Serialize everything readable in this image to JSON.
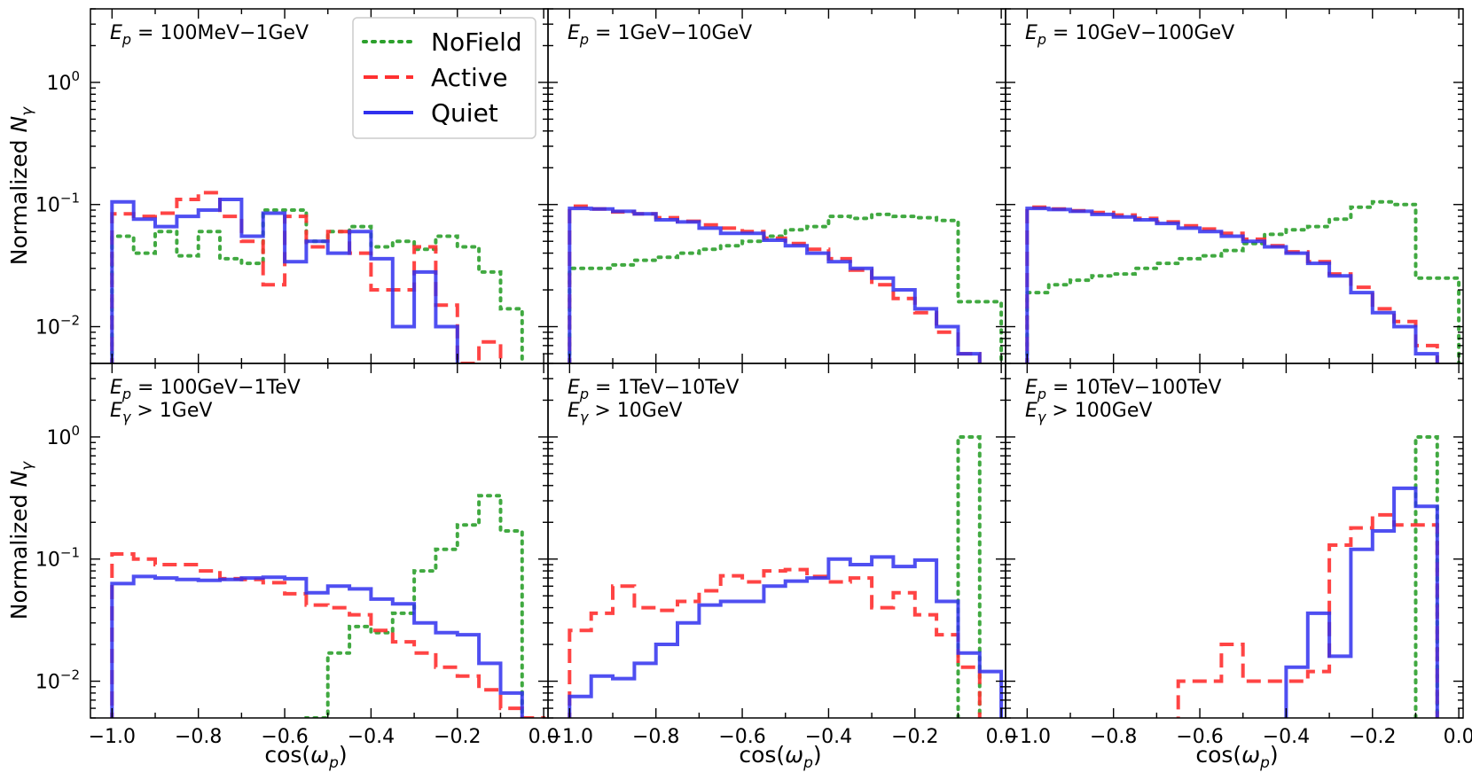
{
  "figure": {
    "ylabel": "Normalized N_γ",
    "xlabel": "cos(ω_p)",
    "yscale": "log",
    "ylim": [
      0.005,
      4.0
    ],
    "xlim": [
      -1.05,
      0.01
    ],
    "colors": {
      "NoField": "#2ca02c",
      "Active": "#ff3030",
      "Quiet": "#3030ee"
    }
  },
  "legend": [
    {
      "name": "NoField",
      "style": "dotted"
    },
    {
      "name": "Active",
      "style": "dashed"
    },
    {
      "name": "Quiet",
      "style": "solid"
    }
  ],
  "chart_data": [
    {
      "type": "line",
      "title": "E_p = 100MeV−1GeV",
      "subtitle": "",
      "xlabel": "",
      "ylabel": "Normalized N_γ",
      "xticks": [
        "−1.0",
        "−0.8",
        "−0.6",
        "−0.4",
        "−0.2",
        "0.0"
      ],
      "yticks": [
        "10^-2",
        "10^-1",
        "10^0"
      ],
      "x": [
        -1.0,
        -0.95,
        -0.9,
        -0.85,
        -0.8,
        -0.75,
        -0.7,
        -0.65,
        -0.6,
        -0.55,
        -0.5,
        -0.45,
        -0.4,
        -0.35,
        -0.3,
        -0.25,
        -0.2,
        -0.15,
        -0.1,
        -0.05
      ],
      "series": [
        {
          "name": "NoField",
          "values": [
            0.055,
            0.04,
            0.06,
            0.038,
            0.06,
            0.036,
            0.033,
            0.09,
            0.09,
            0.05,
            0.06,
            0.066,
            0.045,
            0.05,
            0.043,
            0.055,
            0.045,
            0.028,
            0.014,
            0.0045
          ]
        },
        {
          "name": "Active",
          "values": [
            0.084,
            0.08,
            0.085,
            0.11,
            0.125,
            0.08,
            0.05,
            0.022,
            0.08,
            0.045,
            0.06,
            0.04,
            0.02,
            0.02,
            0.045,
            0.015,
            0.005,
            0.0075,
            0.004,
            0.0035
          ]
        },
        {
          "name": "Quiet",
          "values": [
            0.105,
            0.076,
            0.066,
            0.08,
            0.09,
            0.11,
            0.055,
            0.085,
            0.034,
            0.05,
            0.04,
            0.06,
            0.036,
            0.01,
            0.028,
            0.01,
            0.004,
            0.004,
            0.004,
            0.004
          ]
        }
      ]
    },
    {
      "type": "line",
      "title": "E_p = 1GeV−10GeV",
      "subtitle": "",
      "xlabel": "",
      "ylabel": "",
      "xticks": [
        "−1.0",
        "−0.8",
        "−0.6",
        "−0.4",
        "−0.2",
        "0.0"
      ],
      "yticks": [],
      "x": [
        -1.0,
        -0.95,
        -0.9,
        -0.85,
        -0.8,
        -0.75,
        -0.7,
        -0.65,
        -0.6,
        -0.55,
        -0.5,
        -0.45,
        -0.4,
        -0.35,
        -0.3,
        -0.25,
        -0.2,
        -0.15,
        -0.1,
        -0.05
      ],
      "series": [
        {
          "name": "NoField",
          "values": [
            0.03,
            0.03,
            0.032,
            0.035,
            0.037,
            0.04,
            0.043,
            0.046,
            0.05,
            0.055,
            0.062,
            0.066,
            0.08,
            0.077,
            0.083,
            0.08,
            0.078,
            0.074,
            0.016,
            0.016
          ]
        },
        {
          "name": "Active",
          "values": [
            0.097,
            0.092,
            0.087,
            0.084,
            0.078,
            0.073,
            0.068,
            0.064,
            0.06,
            0.053,
            0.048,
            0.043,
            0.036,
            0.029,
            0.022,
            0.017,
            0.013,
            0.009,
            0.006,
            0.004
          ]
        },
        {
          "name": "Quiet",
          "values": [
            0.093,
            0.092,
            0.088,
            0.084,
            0.075,
            0.072,
            0.064,
            0.058,
            0.058,
            0.051,
            0.046,
            0.04,
            0.034,
            0.03,
            0.025,
            0.02,
            0.014,
            0.01,
            0.006,
            0.004
          ]
        }
      ]
    },
    {
      "type": "line",
      "title": "E_p = 10GeV−100GeV",
      "subtitle": "",
      "xlabel": "",
      "ylabel": "",
      "xticks": [
        "−1.0",
        "−0.8",
        "−0.6",
        "−0.4",
        "−0.2",
        "0.0"
      ],
      "yticks": [],
      "x": [
        -1.0,
        -0.95,
        -0.9,
        -0.85,
        -0.8,
        -0.75,
        -0.7,
        -0.65,
        -0.6,
        -0.55,
        -0.5,
        -0.45,
        -0.4,
        -0.35,
        -0.3,
        -0.25,
        -0.2,
        -0.15,
        -0.1,
        -0.05
      ],
      "series": [
        {
          "name": "NoField",
          "values": [
            0.019,
            0.022,
            0.024,
            0.026,
            0.027,
            0.03,
            0.033,
            0.036,
            0.038,
            0.042,
            0.048,
            0.057,
            0.062,
            0.066,
            0.076,
            0.095,
            0.105,
            0.1,
            0.025,
            0.025
          ]
        },
        {
          "name": "Active",
          "values": [
            0.095,
            0.092,
            0.089,
            0.086,
            0.082,
            0.077,
            0.072,
            0.067,
            0.063,
            0.058,
            0.052,
            0.046,
            0.041,
            0.034,
            0.027,
            0.021,
            0.014,
            0.011,
            0.007,
            0.004
          ]
        },
        {
          "name": "Quiet",
          "values": [
            0.093,
            0.091,
            0.088,
            0.083,
            0.079,
            0.075,
            0.07,
            0.064,
            0.06,
            0.055,
            0.05,
            0.045,
            0.04,
            0.033,
            0.026,
            0.019,
            0.013,
            0.01,
            0.006,
            0.004
          ]
        }
      ]
    },
    {
      "type": "line",
      "title": "E_p = 100GeV−1TeV",
      "subtitle": "E_γ > 1GeV",
      "xlabel": "cos(ω_p)",
      "ylabel": "Normalized N_γ",
      "xticks": [
        "−1.0",
        "−0.8",
        "−0.6",
        "−0.4",
        "−0.2",
        "0.0"
      ],
      "yticks": [
        "10^-2",
        "10^-1",
        "10^0"
      ],
      "x": [
        -1.0,
        -0.95,
        -0.9,
        -0.85,
        -0.8,
        -0.75,
        -0.7,
        -0.65,
        -0.6,
        -0.55,
        -0.5,
        -0.45,
        -0.4,
        -0.35,
        -0.3,
        -0.25,
        -0.2,
        -0.15,
        -0.1,
        -0.05
      ],
      "series": [
        {
          "name": "NoField",
          "values": [
            0.001,
            0.001,
            0.001,
            0.001,
            0.001,
            0.001,
            0.001,
            0.001,
            0.001,
            0.005,
            0.017,
            0.028,
            0.025,
            0.036,
            0.08,
            0.12,
            0.19,
            0.33,
            0.17,
            0.004
          ]
        },
        {
          "name": "Active",
          "values": [
            0.11,
            0.1,
            0.09,
            0.09,
            0.08,
            0.069,
            0.068,
            0.064,
            0.052,
            0.042,
            0.04,
            0.035,
            0.026,
            0.021,
            0.017,
            0.013,
            0.011,
            0.0085,
            0.006,
            0.005
          ]
        },
        {
          "name": "Quiet",
          "values": [
            0.063,
            0.072,
            0.07,
            0.068,
            0.067,
            0.068,
            0.07,
            0.071,
            0.069,
            0.053,
            0.06,
            0.057,
            0.047,
            0.043,
            0.03,
            0.025,
            0.024,
            0.014,
            0.008,
            0.004
          ]
        }
      ]
    },
    {
      "type": "line",
      "title": "E_p = 1TeV−10TeV",
      "subtitle": "E_γ > 10GeV",
      "xlabel": "cos(ω_p)",
      "ylabel": "",
      "xticks": [
        "−1.0",
        "−0.8",
        "−0.6",
        "−0.4",
        "−0.2",
        "0.0"
      ],
      "yticks": [],
      "x": [
        -1.0,
        -0.95,
        -0.9,
        -0.85,
        -0.8,
        -0.75,
        -0.7,
        -0.65,
        -0.6,
        -0.55,
        -0.5,
        -0.45,
        -0.4,
        -0.35,
        -0.3,
        -0.25,
        -0.2,
        -0.15,
        -0.1,
        -0.05
      ],
      "series": [
        {
          "name": "NoField",
          "values": [
            0.001,
            0.001,
            0.001,
            0.001,
            0.001,
            0.001,
            0.001,
            0.001,
            0.001,
            0.001,
            0.001,
            0.001,
            0.001,
            0.001,
            0.001,
            0.001,
            0.001,
            0.001,
            1.0,
            0.004
          ]
        },
        {
          "name": "Active",
          "values": [
            0.026,
            0.036,
            0.06,
            0.04,
            0.038,
            0.045,
            0.055,
            0.073,
            0.065,
            0.08,
            0.082,
            0.072,
            0.065,
            0.07,
            0.04,
            0.053,
            0.035,
            0.024,
            0.013,
            0.004
          ]
        },
        {
          "name": "Quiet",
          "values": [
            0.0075,
            0.011,
            0.0105,
            0.014,
            0.02,
            0.03,
            0.042,
            0.045,
            0.045,
            0.06,
            0.066,
            0.07,
            0.1,
            0.09,
            0.104,
            0.087,
            0.098,
            0.045,
            0.017,
            0.012
          ]
        }
      ]
    },
    {
      "type": "line",
      "title": "E_p = 10TeV−100TeV",
      "subtitle": "E_γ > 100GeV",
      "xlabel": "cos(ω_p)",
      "ylabel": "",
      "xticks": [
        "−1.0",
        "−0.8",
        "−0.6",
        "−0.4",
        "−0.2",
        "0.0"
      ],
      "yticks": [],
      "x": [
        -1.0,
        -0.95,
        -0.9,
        -0.85,
        -0.8,
        -0.75,
        -0.7,
        -0.65,
        -0.6,
        -0.55,
        -0.5,
        -0.45,
        -0.4,
        -0.35,
        -0.3,
        -0.25,
        -0.2,
        -0.15,
        -0.1,
        -0.05
      ],
      "series": [
        {
          "name": "NoField",
          "values": [
            0.001,
            0.001,
            0.001,
            0.001,
            0.001,
            0.001,
            0.001,
            0.001,
            0.001,
            0.001,
            0.001,
            0.001,
            0.001,
            0.001,
            0.001,
            0.001,
            0.001,
            0.001,
            1.0,
            0.004
          ]
        },
        {
          "name": "Active",
          "values": [
            0.001,
            0.001,
            0.001,
            0.001,
            0.001,
            0.001,
            0.001,
            0.01,
            0.01,
            0.02,
            0.01,
            0.01,
            0.01,
            0.012,
            0.13,
            0.18,
            0.23,
            0.19,
            0.19,
            0.004
          ]
        },
        {
          "name": "Quiet",
          "values": [
            0.001,
            0.001,
            0.001,
            0.001,
            0.001,
            0.001,
            0.001,
            0.001,
            0.001,
            0.001,
            0.001,
            0.001,
            0.013,
            0.036,
            0.016,
            0.12,
            0.17,
            0.38,
            0.27,
            0.004
          ]
        }
      ]
    }
  ]
}
